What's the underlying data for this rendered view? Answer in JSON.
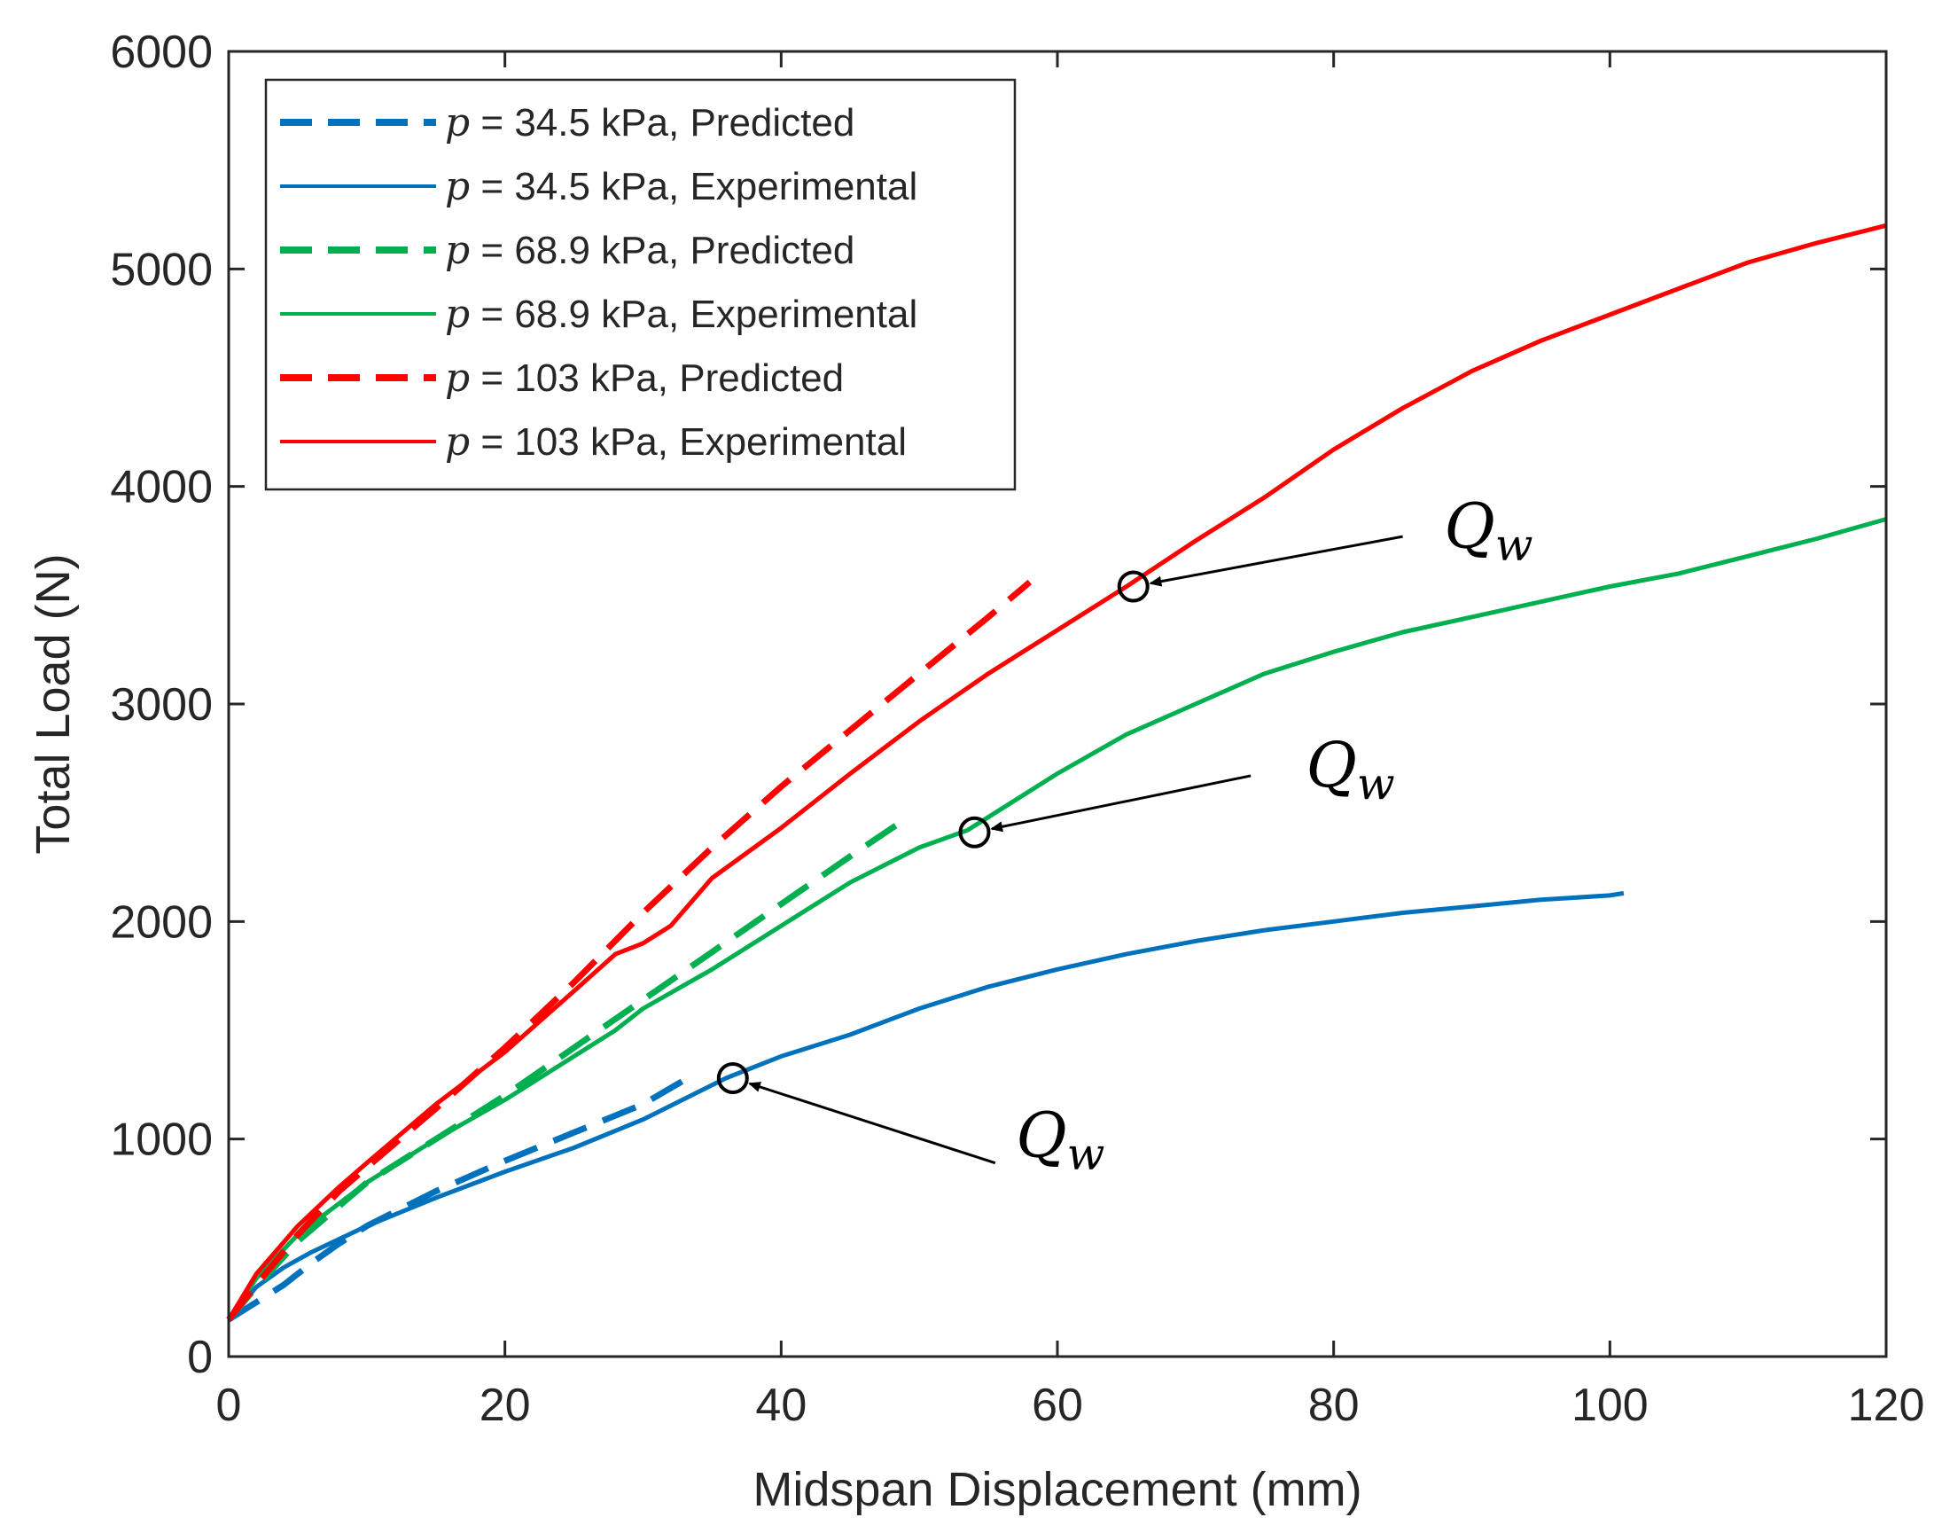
{
  "chart_data": {
    "type": "line",
    "title": "",
    "xlabel": "Midspan Displacement (mm)",
    "ylabel": "Total Load (N)",
    "xlim": [
      0,
      120
    ],
    "ylim": [
      0,
      6000
    ],
    "xticks": [
      0,
      20,
      40,
      60,
      80,
      100,
      120
    ],
    "yticks": [
      0,
      1000,
      2000,
      3000,
      4000,
      5000,
      6000
    ],
    "xtick_labels": [
      "0",
      "20",
      "40",
      "60",
      "80",
      "100",
      "120"
    ],
    "ytick_labels": [
      "0",
      "1000",
      "2000",
      "3000",
      "4000",
      "5000",
      "6000"
    ],
    "grid": false,
    "legend_position": "top-left",
    "series": [
      {
        "name": "p = 34.5 kPa, Predicted",
        "legend_symbol": "p",
        "legend_rest": " = 34.5 kPa, Predicted",
        "color": "#0072BD",
        "style": "dashed",
        "x": [
          0,
          2,
          4,
          6,
          8,
          10,
          15,
          20,
          25,
          30,
          33.5
        ],
        "y": [
          170,
          250,
          330,
          430,
          520,
          600,
          760,
          900,
          1030,
          1160,
          1290
        ]
      },
      {
        "name": "p = 34.5 kPa, Experimental",
        "legend_symbol": "p",
        "legend_rest": " = 34.5 kPa, Experimental",
        "color": "#0072BD",
        "style": "solid",
        "x": [
          0,
          2,
          4,
          6,
          8,
          10,
          15,
          20,
          25,
          30,
          36,
          40,
          45,
          50,
          55,
          60,
          65,
          70,
          75,
          80,
          85,
          90,
          95,
          100,
          101
        ],
        "y": [
          170,
          320,
          410,
          480,
          540,
          600,
          730,
          850,
          960,
          1090,
          1280,
          1380,
          1480,
          1600,
          1700,
          1780,
          1850,
          1910,
          1960,
          2000,
          2040,
          2070,
          2100,
          2120,
          2130
        ]
      },
      {
        "name": "p = 68.9 kPa, Predicted",
        "legend_symbol": "p",
        "legend_rest": " = 68.9 kPa, Predicted",
        "color": "#00B050",
        "style": "dashed",
        "x": [
          0,
          2,
          5,
          10,
          15,
          20,
          25,
          30,
          35,
          40,
          45,
          48.5
        ],
        "y": [
          170,
          320,
          530,
          800,
          1000,
          1200,
          1420,
          1640,
          1860,
          2080,
          2300,
          2450
        ]
      },
      {
        "name": "p = 68.9 kPa, Experimental",
        "legend_symbol": "p",
        "legend_rest": " = 68.9 kPa, Experimental",
        "color": "#00B050",
        "style": "solid",
        "x": [
          0,
          2,
          5,
          10,
          15,
          20,
          25,
          28,
          30,
          35,
          40,
          45,
          50,
          53.5,
          60,
          65,
          70,
          75,
          80,
          85,
          90,
          95,
          100,
          105,
          110,
          115,
          120
        ],
        "y": [
          170,
          360,
          560,
          800,
          1000,
          1180,
          1380,
          1500,
          1600,
          1780,
          1980,
          2180,
          2340,
          2420,
          2680,
          2860,
          3000,
          3140,
          3240,
          3330,
          3400,
          3470,
          3540,
          3600,
          3680,
          3760,
          3850
        ]
      },
      {
        "name": "p = 103 kPa, Predicted",
        "legend_symbol": "p",
        "legend_rest": " = 103 kPa, Predicted",
        "color": "#FF0000",
        "style": "dashed",
        "x": [
          0,
          2,
          5,
          8,
          10,
          15,
          20,
          25,
          30,
          35,
          40,
          45,
          50,
          55,
          58
        ],
        "y": [
          170,
          330,
          560,
          760,
          870,
          1140,
          1420,
          1720,
          2040,
          2340,
          2620,
          2880,
          3140,
          3400,
          3560
        ]
      },
      {
        "name": "p = 103 kPa, Experimental",
        "legend_symbol": "p",
        "legend_rest": " = 103 kPa, Experimental",
        "color": "#FF0000",
        "style": "solid",
        "x": [
          0,
          2,
          5,
          8,
          10,
          15,
          20,
          25,
          28,
          30,
          32,
          35,
          40,
          45,
          50,
          55,
          60,
          65,
          70,
          75,
          80,
          85,
          90,
          95,
          100,
          105,
          110,
          115,
          120
        ],
        "y": [
          170,
          380,
          600,
          780,
          890,
          1160,
          1400,
          1680,
          1850,
          1900,
          1980,
          2200,
          2430,
          2680,
          2920,
          3140,
          3340,
          3540,
          3750,
          3950,
          4170,
          4360,
          4530,
          4670,
          4790,
          4910,
          5030,
          5120,
          5200
        ]
      }
    ],
    "annotations": [
      {
        "text": "Q",
        "subscript": "w",
        "label": "Q_w",
        "point": [
          36.5,
          1280
        ],
        "text_at": [
          57,
          920
        ],
        "arrow_from": [
          55.5,
          890
        ],
        "color": "#000000"
      },
      {
        "text": "Q",
        "subscript": "w",
        "label": "Q_w",
        "point": [
          54,
          2410
        ],
        "text_at": [
          78,
          2620
        ],
        "arrow_from": [
          74,
          2670
        ],
        "color": "#000000"
      },
      {
        "text": "Q",
        "subscript": "w",
        "label": "Q_w",
        "point": [
          65.5,
          3540
        ],
        "text_at": [
          88,
          3720
        ],
        "arrow_from": [
          85,
          3770
        ],
        "color": "#000000"
      }
    ]
  }
}
